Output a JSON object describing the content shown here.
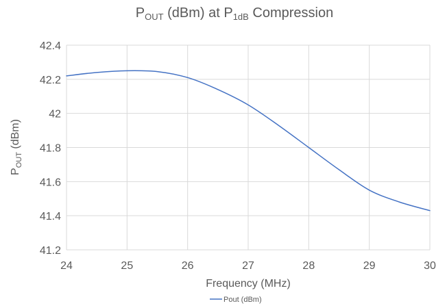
{
  "chart_data": {
    "type": "line",
    "title": {
      "main": "P",
      "sub": "OUT",
      "mid": " (dBm) at P",
      "sub2": "1dB",
      "end": " Compression"
    },
    "xlabel": "Frequency (MHz)",
    "ylabel": {
      "main": "P",
      "sub": "OUT",
      "end": " (dBm)"
    },
    "xlim": [
      24,
      30
    ],
    "ylim": [
      41.2,
      42.4
    ],
    "x_ticks": [
      "24",
      "25",
      "26",
      "27",
      "28",
      "29",
      "30"
    ],
    "y_ticks": [
      "41.2",
      "41.4",
      "41.6",
      "41.8",
      "42",
      "42.2",
      "42.4"
    ],
    "grid": true,
    "legend_position": "bottom",
    "series": [
      {
        "name": "Pout (dBm)",
        "color": "#4472c4",
        "x": [
          24,
          24.5,
          25,
          25.5,
          26,
          26.5,
          27,
          27.5,
          28,
          28.5,
          29,
          29.5,
          30
        ],
        "y": [
          42.22,
          42.24,
          42.25,
          42.245,
          42.21,
          42.14,
          42.05,
          41.93,
          41.8,
          41.67,
          41.55,
          41.48,
          41.43
        ]
      }
    ]
  }
}
